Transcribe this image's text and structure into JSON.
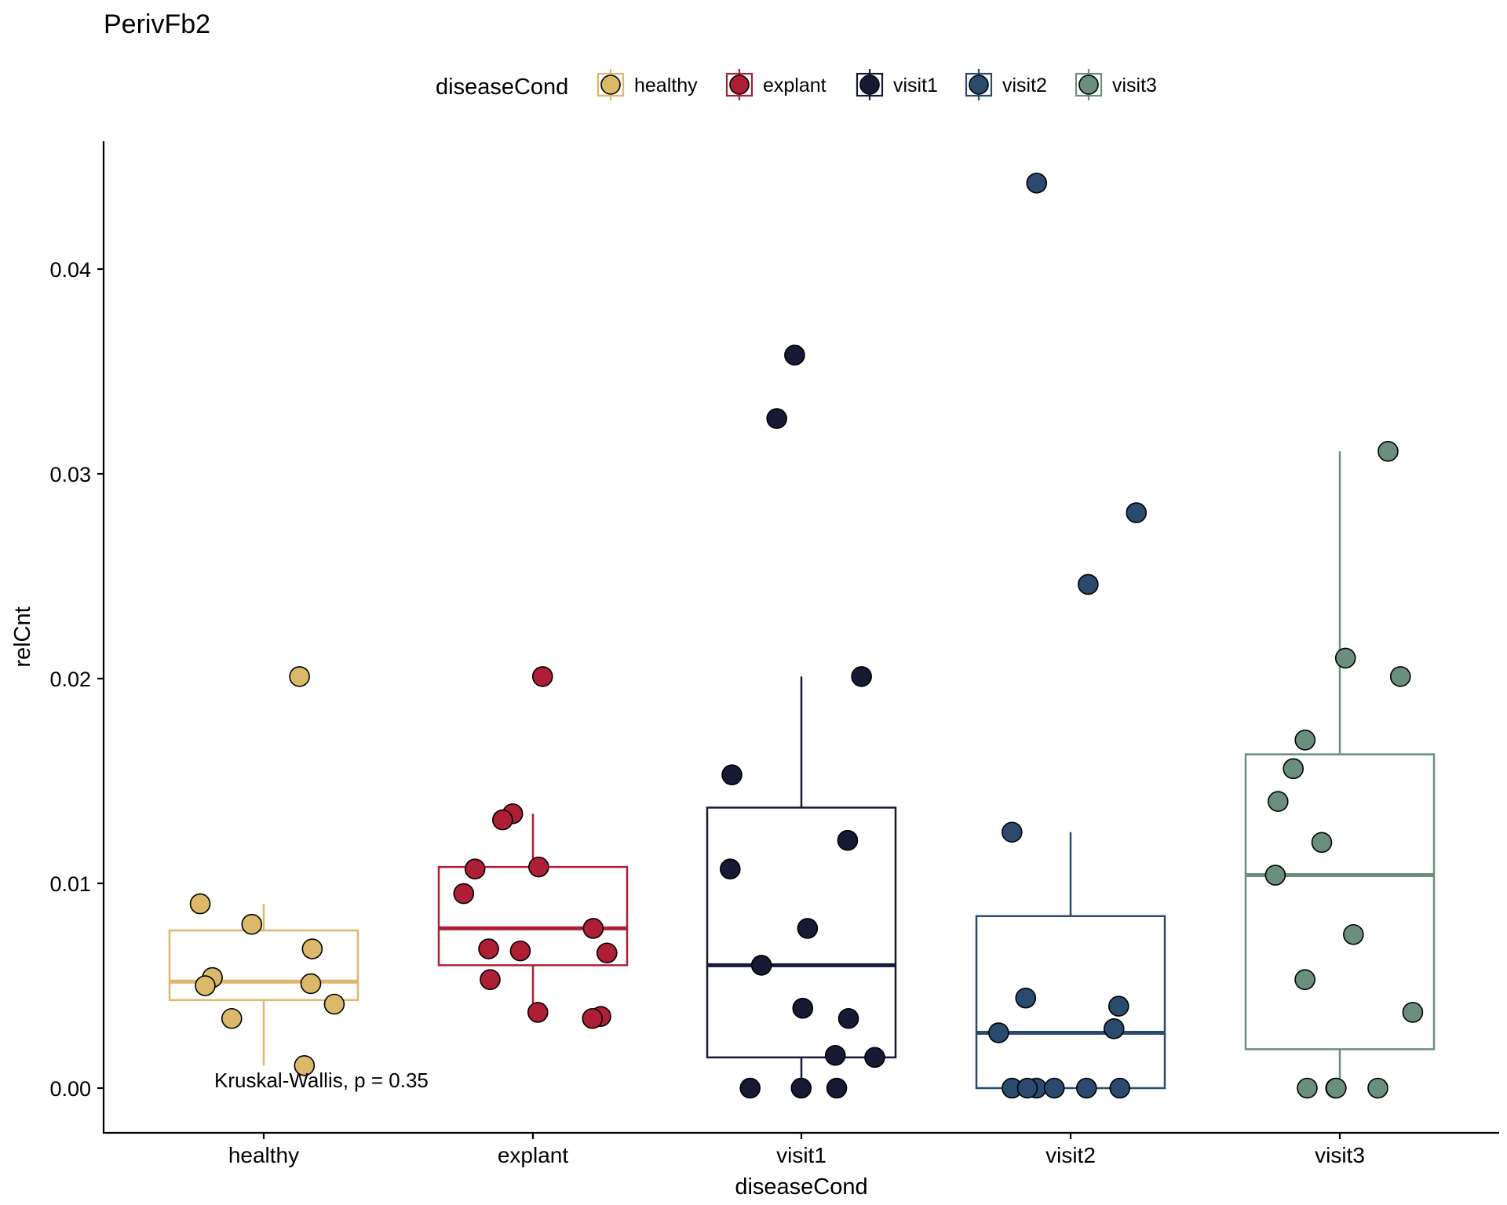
{
  "chart_data": {
    "type": "boxplot",
    "title": "PerivFb2",
    "xlabel": "diseaseCond",
    "ylabel": "relCnt",
    "ylim": [
      -0.0022,
      0.0462
    ],
    "y_ticks": [
      "0.00",
      "0.01",
      "0.02",
      "0.03",
      "0.04"
    ],
    "y_tick_values": [
      0,
      0.01,
      0.02,
      0.03,
      0.04
    ],
    "categories": [
      "healthy",
      "explant",
      "visit1",
      "visit2",
      "visit3"
    ],
    "legend": {
      "title": "diseaseCond",
      "position": "top"
    },
    "annotation": "Kruskal-Wallis, p = 0.35",
    "grid": false,
    "series": [
      {
        "name": "healthy",
        "color": "#dbb86a",
        "box": {
          "lower_whisker": 0.0011,
          "q1": 0.0043,
          "median": 0.0052,
          "q3": 0.0077,
          "upper_whisker": 0.009
        },
        "points": [
          0.0201,
          0.009,
          0.008,
          0.0068,
          0.0054,
          0.0051,
          0.005,
          0.0041,
          0.0034,
          0.0011
        ]
      },
      {
        "name": "explant",
        "color": "#ae1f35",
        "box": {
          "lower_whisker": 0.0034,
          "q1": 0.006,
          "median": 0.0078,
          "q3": 0.0108,
          "upper_whisker": 0.0134
        },
        "points": [
          0.0201,
          0.0134,
          0.0131,
          0.0108,
          0.0107,
          0.0095,
          0.0078,
          0.0068,
          0.0067,
          0.0066,
          0.0053,
          0.0037,
          0.0035,
          0.0034
        ]
      },
      {
        "name": "visit1",
        "color": "#161a35",
        "box": {
          "lower_whisker": 0.0,
          "q1": 0.0015,
          "median": 0.006,
          "q3": 0.0137,
          "upper_whisker": 0.0201
        },
        "points": [
          0.0358,
          0.0327,
          0.0201,
          0.0153,
          0.0121,
          0.0107,
          0.0078,
          0.006,
          0.0039,
          0.0034,
          0.0016,
          0.0015,
          0.0,
          0.0,
          0.0
        ]
      },
      {
        "name": "visit2",
        "color": "#2a4a6e",
        "box": {
          "lower_whisker": 0.0,
          "q1": 0.0,
          "median": 0.0027,
          "q3": 0.0084,
          "upper_whisker": 0.0125
        },
        "points": [
          0.0442,
          0.0281,
          0.0246,
          0.0125,
          0.0044,
          0.004,
          0.0029,
          0.0027,
          0.0,
          0.0,
          0.0,
          0.0,
          0.0,
          0.0
        ]
      },
      {
        "name": "visit3",
        "color": "#6a8f7c",
        "box": {
          "lower_whisker": 0.0,
          "q1": 0.0019,
          "median": 0.0104,
          "q3": 0.0163,
          "upper_whisker": 0.0311
        },
        "points": [
          0.0311,
          0.021,
          0.0201,
          0.017,
          0.0156,
          0.014,
          0.012,
          0.0104,
          0.0075,
          0.0053,
          0.0037,
          0.0,
          0.0,
          0.0,
          0.0
        ]
      }
    ]
  }
}
